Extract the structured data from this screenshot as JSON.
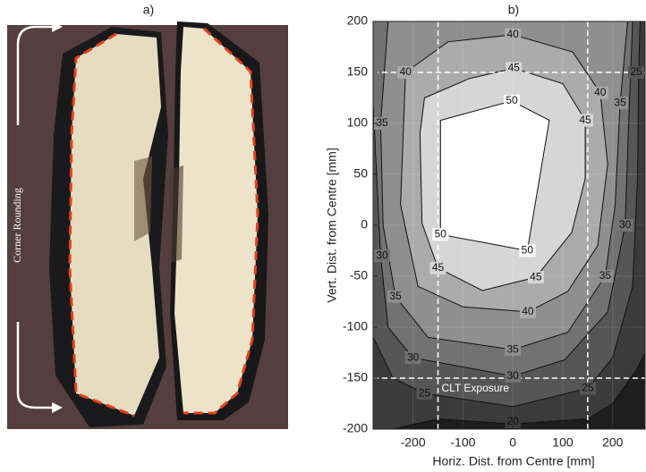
{
  "photo": {
    "title": "a)",
    "annotation": "Corner Rounding"
  },
  "chart_data": {
    "type": "contour",
    "title": "b)",
    "x_label": "Horiz. Dist. from Centre [mm]",
    "y_label": "Vert. Dist. from Centre [mm]",
    "xlim": [
      -280,
      265
    ],
    "ylim": [
      -200,
      200
    ],
    "xticks": [
      -200,
      -100,
      0,
      100,
      200
    ],
    "yticks": [
      -200,
      -150,
      -100,
      -50,
      0,
      50,
      100,
      150,
      200
    ],
    "grid": true,
    "background_color": "#1e1e1e",
    "line_color": "#111111",
    "contours": [
      {
        "level": 20,
        "fill": "#3b3b3b",
        "points": [
          [
            -240,
            -200
          ],
          [
            -150,
            -190
          ],
          [
            0,
            -195
          ],
          [
            150,
            -190
          ],
          [
            200,
            -175
          ],
          [
            250,
            -140
          ],
          [
            265,
            -125
          ]
        ]
      },
      {
        "level": 25,
        "fill": "#565656",
        "points": [
          [
            -280,
            -110
          ],
          [
            -240,
            -150
          ],
          [
            -177,
            -165
          ],
          [
            0,
            -178
          ],
          [
            150,
            -160
          ],
          [
            200,
            -130
          ],
          [
            240,
            -60
          ],
          [
            250,
            50
          ],
          [
            252,
            150
          ],
          [
            255,
            200
          ]
        ]
      },
      {
        "level": 30,
        "fill": "#727272",
        "points": [
          [
            -280,
            120
          ],
          [
            -265,
            -30
          ],
          [
            -250,
            -100
          ],
          [
            -200,
            -130
          ],
          [
            0,
            -148
          ],
          [
            104,
            -132
          ],
          [
            190,
            -85
          ],
          [
            225,
            0
          ],
          [
            232,
            100
          ],
          [
            240,
            200
          ]
        ]
      },
      {
        "level": 35,
        "fill": "#8f8f8f",
        "points": [
          [
            -250,
            200
          ],
          [
            -265,
            100
          ],
          [
            -260,
            0
          ],
          [
            -235,
            -70
          ],
          [
            -170,
            -110
          ],
          [
            0,
            -122
          ],
          [
            110,
            -105
          ],
          [
            185,
            -50
          ],
          [
            205,
            20
          ],
          [
            215,
            120
          ],
          [
            230,
            200
          ]
        ]
      },
      {
        "level": 40,
        "fill": "#ababab",
        "points": [
          [
            -215,
            150
          ],
          [
            -130,
            180
          ],
          [
            0,
            187
          ],
          [
            120,
            170
          ],
          [
            175,
            130
          ],
          [
            190,
            60
          ],
          [
            170,
            -20
          ],
          [
            110,
            -65
          ],
          [
            30,
            -85
          ],
          [
            -100,
            -80
          ],
          [
            -190,
            -60
          ],
          [
            -225,
            20
          ]
        ]
      },
      {
        "level": 45,
        "fill": "#d6d6d6",
        "points": [
          [
            -177,
            125
          ],
          [
            -87,
            144
          ],
          [
            2,
            154
          ],
          [
            100,
            139
          ],
          [
            145,
            103
          ],
          [
            145,
            46
          ],
          [
            118,
            -7
          ],
          [
            46,
            -51
          ],
          [
            -61,
            -64
          ],
          [
            -150,
            -42
          ],
          [
            -182,
            2
          ],
          [
            -186,
            90
          ]
        ]
      },
      {
        "level": 50,
        "fill": "#ffffff",
        "points": [
          [
            -145,
            103
          ],
          [
            -2,
            122
          ],
          [
            73,
            103
          ],
          [
            29,
            -25
          ],
          [
            -25,
            -20
          ],
          [
            -145,
            -9
          ]
        ]
      }
    ],
    "reference_lines": {
      "color": "#ffffff",
      "x": [
        -150,
        150
      ],
      "y": [
        -150,
        150
      ]
    },
    "annotation": "CLT Exposure"
  }
}
